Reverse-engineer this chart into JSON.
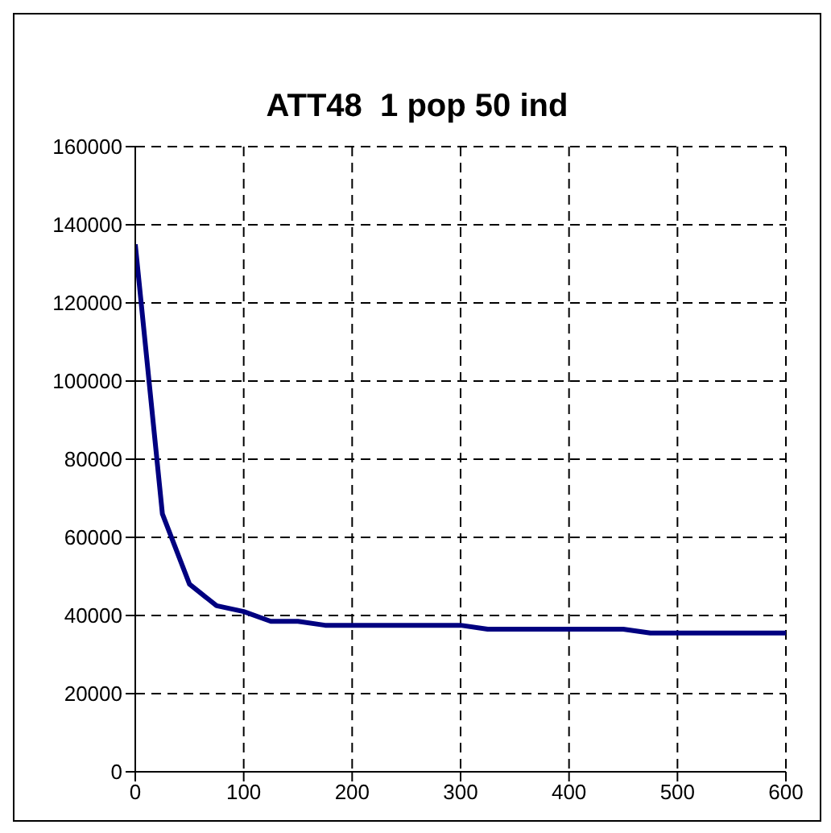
{
  "chart_data": {
    "type": "line",
    "title": "ATT48  1 pop 50 ind",
    "x": [
      0,
      25,
      50,
      75,
      100,
      125,
      150,
      175,
      200,
      225,
      250,
      275,
      300,
      325,
      350,
      375,
      400,
      425,
      450,
      475,
      500,
      525,
      550,
      575,
      600
    ],
    "series": [
      {
        "color": "#000080",
        "values": [
          135000,
          66000,
          48000,
          42500,
          41000,
          38500,
          38500,
          37500,
          37500,
          37500,
          37500,
          37500,
          37500,
          36500,
          36500,
          36500,
          36500,
          36500,
          36500,
          35500,
          35500,
          35500,
          35500,
          35500,
          35500
        ]
      }
    ],
    "xlim": [
      0,
      600
    ],
    "xticks": [
      0,
      100,
      200,
      300,
      400,
      500,
      600
    ],
    "ylim": [
      0,
      160000
    ],
    "yticks": [
      0,
      20000,
      40000,
      60000,
      80000,
      100000,
      120000,
      140000,
      160000
    ],
    "grid": true,
    "legend": false,
    "marker": "none",
    "line_style": "solid"
  }
}
